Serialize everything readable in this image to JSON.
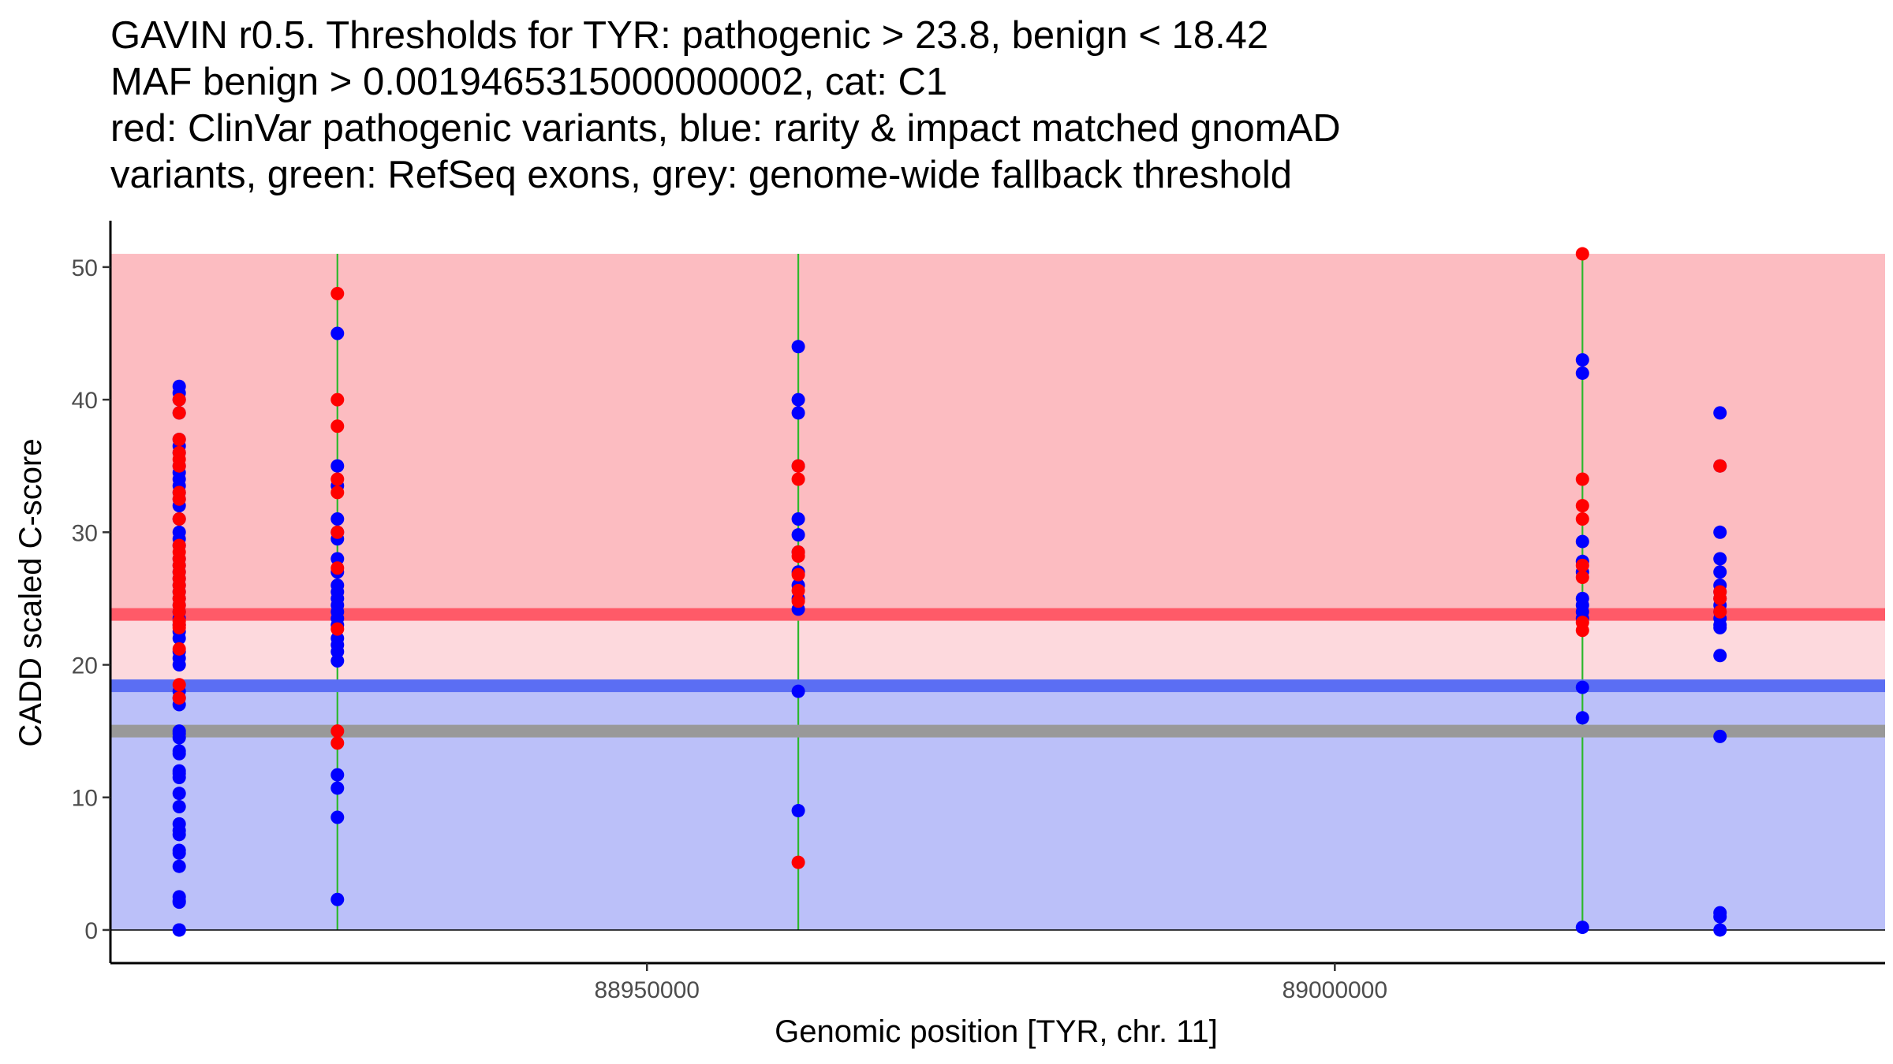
{
  "title_lines": [
    "GAVIN r0.5. Thresholds for TYR: pathogenic > 23.8, benign < 18.42",
    "MAF benign > 0.0019465315000000002, cat: C1",
    "red: ClinVar pathogenic variants, blue: rarity & impact matched gnomAD",
    "variants, green: RefSeq exons, grey: genome-wide fallback threshold"
  ],
  "colors": {
    "pathogenic_region": "#fcbcc1",
    "pathogenic_line": "#ff5a68",
    "mid_region": "#fdd9dd",
    "benign_line": "#5b6ef3",
    "benign_region": "#bbc0f9",
    "fallback_line": "#999999",
    "exon": "#2db82d",
    "clinvar_point": "#ff0000",
    "gnomad_point": "#0000ff"
  },
  "chart_data": {
    "type": "scatter",
    "xlabel": "Genomic position [TYR, chr. 11]",
    "ylabel": "CADD scaled C-score",
    "xlim": [
      88911000,
      89040000
    ],
    "ylim": [
      -2.5,
      53.5
    ],
    "x_ticks": [
      88950000,
      89000000
    ],
    "x_tick_labels": [
      "88950000",
      "89000000"
    ],
    "y_ticks": [
      0,
      10,
      20,
      30,
      40,
      50
    ],
    "y_tick_labels": [
      "0",
      "10",
      "20",
      "30",
      "40",
      "50"
    ],
    "regions": {
      "benign_region": [
        0,
        18.42
      ],
      "mid_region": [
        18.42,
        23.8
      ],
      "pathogenic_region": [
        23.8,
        51
      ],
      "region_x_start": 88911000
    },
    "threshold_lines": {
      "pathogenic": 23.8,
      "benign": 18.42,
      "fallback": 15
    },
    "exons": [
      88927500,
      88961000,
      89018000
    ],
    "series": [
      {
        "name": "gnomAD matched variants",
        "color": "blue",
        "points": [
          [
            88916000,
            41
          ],
          [
            88916000,
            40.5
          ],
          [
            88916000,
            40
          ],
          [
            88916000,
            39
          ],
          [
            88916000,
            37
          ],
          [
            88916000,
            36.5
          ],
          [
            88916000,
            36
          ],
          [
            88916000,
            35
          ],
          [
            88916000,
            34.5
          ],
          [
            88916000,
            34
          ],
          [
            88916000,
            33.5
          ],
          [
            88916000,
            33
          ],
          [
            88916000,
            32.5
          ],
          [
            88916000,
            32
          ],
          [
            88916000,
            31
          ],
          [
            88916000,
            30
          ],
          [
            88916000,
            29.5
          ],
          [
            88916000,
            29
          ],
          [
            88916000,
            28
          ],
          [
            88916000,
            27.5
          ],
          [
            88916000,
            27
          ],
          [
            88916000,
            26.5
          ],
          [
            88916000,
            26
          ],
          [
            88916000,
            25.5
          ],
          [
            88916000,
            25
          ],
          [
            88916000,
            24.5
          ],
          [
            88916000,
            24
          ],
          [
            88916000,
            23.5
          ],
          [
            88916000,
            23
          ],
          [
            88916000,
            22.5
          ],
          [
            88916000,
            22
          ],
          [
            88916000,
            21
          ],
          [
            88916000,
            20.5
          ],
          [
            88916000,
            20
          ],
          [
            88916000,
            18
          ],
          [
            88916000,
            17.5
          ],
          [
            88916000,
            17
          ],
          [
            88916000,
            15
          ],
          [
            88916000,
            14.8
          ],
          [
            88916000,
            14.5
          ],
          [
            88916000,
            13.5
          ],
          [
            88916000,
            13.3
          ],
          [
            88916000,
            12
          ],
          [
            88916000,
            11.8
          ],
          [
            88916000,
            11.5
          ],
          [
            88916000,
            10.3
          ],
          [
            88916000,
            9.3
          ],
          [
            88916000,
            8
          ],
          [
            88916000,
            7.5
          ],
          [
            88916000,
            7.2
          ],
          [
            88916000,
            6
          ],
          [
            88916000,
            5.8
          ],
          [
            88916000,
            4.8
          ],
          [
            88916000,
            2.5
          ],
          [
            88916000,
            2.2
          ],
          [
            88916000,
            2.1
          ],
          [
            88916000,
            0
          ],
          [
            88916000,
            0
          ],
          [
            88916000,
            0
          ],
          [
            88927500,
            45
          ],
          [
            88927500,
            35
          ],
          [
            88927500,
            33.5
          ],
          [
            88927500,
            31
          ],
          [
            88927500,
            30
          ],
          [
            88927500,
            29.5
          ],
          [
            88927500,
            28
          ],
          [
            88927500,
            27
          ],
          [
            88927500,
            26
          ],
          [
            88927500,
            25.5
          ],
          [
            88927500,
            25
          ],
          [
            88927500,
            24.5
          ],
          [
            88927500,
            24
          ],
          [
            88927500,
            23.5
          ],
          [
            88927500,
            23
          ],
          [
            88927500,
            22
          ],
          [
            88927500,
            21.5
          ],
          [
            88927500,
            21
          ],
          [
            88927500,
            20.3
          ],
          [
            88927500,
            11.7
          ],
          [
            88927500,
            10.7
          ],
          [
            88927500,
            8.5
          ],
          [
            88927500,
            2.3
          ],
          [
            88961000,
            44
          ],
          [
            88961000,
            40
          ],
          [
            88961000,
            39
          ],
          [
            88961000,
            35
          ],
          [
            88961000,
            31
          ],
          [
            88961000,
            29.8
          ],
          [
            88961000,
            28.5
          ],
          [
            88961000,
            27
          ],
          [
            88961000,
            26
          ],
          [
            88961000,
            25
          ],
          [
            88961000,
            24.2
          ],
          [
            88961000,
            18
          ],
          [
            88961000,
            9
          ],
          [
            89018000,
            43
          ],
          [
            89018000,
            42
          ],
          [
            89018000,
            29.3
          ],
          [
            89018000,
            27.8
          ],
          [
            89018000,
            27
          ],
          [
            89018000,
            25
          ],
          [
            89018000,
            24.5
          ],
          [
            89018000,
            24
          ],
          [
            89018000,
            23.5
          ],
          [
            89018000,
            18.3
          ],
          [
            89018000,
            16
          ],
          [
            89018000,
            0.2
          ],
          [
            89028000,
            39
          ],
          [
            89028000,
            35
          ],
          [
            89028000,
            30
          ],
          [
            89028000,
            28
          ],
          [
            89028000,
            27
          ],
          [
            89028000,
            26
          ],
          [
            89028000,
            25.5
          ],
          [
            89028000,
            25
          ],
          [
            89028000,
            24.5
          ],
          [
            89028000,
            24
          ],
          [
            89028000,
            23.5
          ],
          [
            89028000,
            23
          ],
          [
            89028000,
            22.8
          ],
          [
            89028000,
            20.7
          ],
          [
            89028000,
            14.6
          ],
          [
            89028000,
            1.3
          ],
          [
            89028000,
            1
          ],
          [
            89028000,
            0
          ]
        ]
      },
      {
        "name": "ClinVar pathogenic variants",
        "color": "red",
        "points": [
          [
            88916000,
            40
          ],
          [
            88916000,
            39
          ],
          [
            88916000,
            37
          ],
          [
            88916000,
            36
          ],
          [
            88916000,
            35.5
          ],
          [
            88916000,
            35
          ],
          [
            88916000,
            33
          ],
          [
            88916000,
            32.5
          ],
          [
            88916000,
            31
          ],
          [
            88916000,
            29
          ],
          [
            88916000,
            28.5
          ],
          [
            88916000,
            28
          ],
          [
            88916000,
            27.5
          ],
          [
            88916000,
            27
          ],
          [
            88916000,
            26.5
          ],
          [
            88916000,
            26
          ],
          [
            88916000,
            25.5
          ],
          [
            88916000,
            25
          ],
          [
            88916000,
            24.5
          ],
          [
            88916000,
            24
          ],
          [
            88916000,
            23.3
          ],
          [
            88916000,
            23
          ],
          [
            88916000,
            22.8
          ],
          [
            88916000,
            21.2
          ],
          [
            88916000,
            18.5
          ],
          [
            88916000,
            17.5
          ],
          [
            88927500,
            48
          ],
          [
            88927500,
            40
          ],
          [
            88927500,
            38
          ],
          [
            88927500,
            34
          ],
          [
            88927500,
            33
          ],
          [
            88927500,
            30
          ],
          [
            88927500,
            27.3
          ],
          [
            88927500,
            22.7
          ],
          [
            88927500,
            15
          ],
          [
            88927500,
            14.1
          ],
          [
            88961000,
            35
          ],
          [
            88961000,
            34
          ],
          [
            88961000,
            28.5
          ],
          [
            88961000,
            28.2
          ],
          [
            88961000,
            26.8
          ],
          [
            88961000,
            25.6
          ],
          [
            88961000,
            24.8
          ],
          [
            88961000,
            5.1
          ],
          [
            89018000,
            51
          ],
          [
            89018000,
            34
          ],
          [
            89018000,
            32
          ],
          [
            89018000,
            31
          ],
          [
            89018000,
            27.5
          ],
          [
            89018000,
            26.6
          ],
          [
            89018000,
            23.2
          ],
          [
            89018000,
            22.6
          ],
          [
            89028000,
            35
          ],
          [
            89028000,
            25.5
          ],
          [
            89028000,
            25
          ],
          [
            89028000,
            24
          ]
        ]
      }
    ]
  }
}
